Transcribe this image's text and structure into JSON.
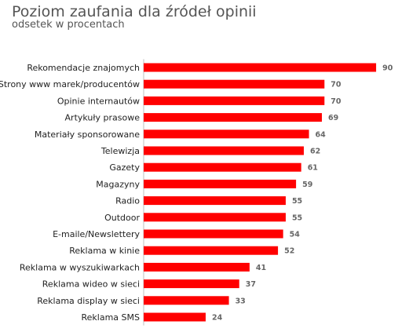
{
  "chart_data": {
    "type": "bar",
    "orientation": "horizontal",
    "title": "Poziom zaufania dla źródeł opinii",
    "subtitle": "odsetek w procentach",
    "xlabel": "",
    "ylabel": "",
    "xlim": [
      0,
      100
    ],
    "grid": false,
    "legend": "none",
    "bar_color": "#ff0000",
    "categories": [
      "Rekomendacje znajomych",
      "Strony www marek/producentów",
      "Opinie internautów",
      "Artykuły prasowe",
      "Materiały sponsorowane",
      "Telewizja",
      "Gazety",
      "Magazyny",
      "Radio",
      "Outdoor",
      "E-maile/Newslettery",
      "Reklama w kinie",
      "Reklama w wyszukiwarkach",
      "Reklama wideo w sieci",
      "Reklama display w sieci",
      "Reklama SMS"
    ],
    "values": [
      90,
      70,
      70,
      69,
      64,
      62,
      61,
      59,
      55,
      55,
      54,
      52,
      41,
      37,
      33,
      24
    ]
  }
}
